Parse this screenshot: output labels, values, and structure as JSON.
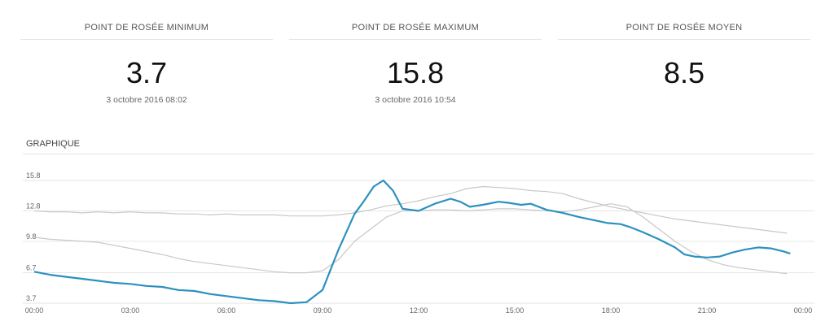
{
  "stats": [
    {
      "label": "POINT DE ROSÉE MINIMUM",
      "value": "3.7",
      "date": "3 octobre 2016 08:02"
    },
    {
      "label": "POINT DE ROSÉE MAXIMUM",
      "value": "15.8",
      "date": "3 octobre 2016 10:54"
    },
    {
      "label": "POINT DE ROSÉE MOYEN",
      "value": "8.5",
      "date": ""
    }
  ],
  "chart_title": "GRAPHIQUE",
  "chart_data": {
    "type": "line",
    "ylim": [
      3.7,
      15.8
    ],
    "yticks": [
      "3.7",
      "6.7",
      "9.8",
      "12.8",
      "15.8"
    ],
    "xticks": [
      "00:00",
      "03:00",
      "06:00",
      "09:00",
      "12:00",
      "15:00",
      "18:00",
      "21:00",
      "00:00"
    ],
    "grid": true,
    "colors": {
      "main": "#2b91c0",
      "reference": "#c8c8c8"
    },
    "series": [
      {
        "role": "main",
        "x": [
          0,
          0.5,
          1,
          1.5,
          2,
          2.5,
          3,
          3.5,
          4,
          4.5,
          5,
          5.5,
          6,
          6.5,
          7,
          7.5,
          8,
          8.5,
          9,
          9.5,
          10,
          10.3,
          10.6,
          10.9,
          11.2,
          11.5,
          12,
          12.5,
          13,
          13.3,
          13.6,
          14,
          14.5,
          14.8,
          15.2,
          15.5,
          16,
          16.5,
          17,
          17.3,
          17.6,
          17.9,
          18.3,
          18.6,
          19,
          19.5,
          20,
          20.3,
          20.6,
          21,
          21.4,
          21.8,
          22.2,
          22.6,
          23,
          23.4,
          23.6
        ],
        "y": [
          6.8,
          6.5,
          6.3,
          6.1,
          5.9,
          5.7,
          5.6,
          5.4,
          5.3,
          5.0,
          4.9,
          4.6,
          4.4,
          4.2,
          4.0,
          3.9,
          3.7,
          3.8,
          5.0,
          9.0,
          12.5,
          13.8,
          15.2,
          15.8,
          14.8,
          13.0,
          12.8,
          13.5,
          14.0,
          13.7,
          13.2,
          13.4,
          13.7,
          13.6,
          13.4,
          13.5,
          12.9,
          12.6,
          12.2,
          12.0,
          11.8,
          11.6,
          11.5,
          11.2,
          10.7,
          10.0,
          9.2,
          8.5,
          8.3,
          8.2,
          8.3,
          8.7,
          9.0,
          9.2,
          9.1,
          8.8,
          8.6
        ]
      },
      {
        "role": "reference",
        "x": [
          0,
          0.5,
          1,
          1.5,
          2,
          2.5,
          3,
          3.5,
          4,
          4.5,
          5,
          5.5,
          6,
          6.5,
          7,
          7.5,
          8,
          8.5,
          9,
          9.5,
          10,
          10.5,
          11,
          11.5,
          12,
          12.5,
          13,
          13.5,
          14,
          14.5,
          15,
          15.5,
          16,
          16.5,
          17,
          17.5,
          18,
          18.5,
          19,
          19.5,
          20,
          20.5,
          21,
          21.5,
          22,
          22.5,
          23,
          23.5
        ],
        "y": [
          12.8,
          12.7,
          12.7,
          12.6,
          12.7,
          12.6,
          12.7,
          12.6,
          12.6,
          12.5,
          12.5,
          12.4,
          12.5,
          12.4,
          12.4,
          12.4,
          12.3,
          12.3,
          12.3,
          12.4,
          12.6,
          12.9,
          13.3,
          13.5,
          13.8,
          14.2,
          14.5,
          15.0,
          15.2,
          15.1,
          15.0,
          14.8,
          14.7,
          14.5,
          14.0,
          13.6,
          13.2,
          12.9,
          12.6,
          12.3,
          12.0,
          11.8,
          11.6,
          11.4,
          11.2,
          11.0,
          10.8,
          10.6
        ]
      },
      {
        "role": "reference",
        "x": [
          0,
          0.5,
          1,
          1.5,
          2,
          2.5,
          3,
          3.5,
          4,
          4.5,
          5,
          5.5,
          6,
          6.5,
          7,
          7.5,
          8,
          8.5,
          9,
          9.5,
          10,
          10.5,
          11,
          11.5,
          12,
          12.5,
          13,
          13.5,
          14,
          14.5,
          15,
          15.5,
          16,
          16.5,
          17,
          17.5,
          18,
          18.5,
          19,
          19.5,
          20,
          20.5,
          21,
          21.5,
          22,
          22.5,
          23,
          23.5
        ],
        "y": [
          10.2,
          10.0,
          9.9,
          9.8,
          9.7,
          9.4,
          9.1,
          8.8,
          8.5,
          8.1,
          7.8,
          7.6,
          7.4,
          7.2,
          7.0,
          6.8,
          6.7,
          6.7,
          6.9,
          8.0,
          9.8,
          11.0,
          12.2,
          12.8,
          12.8,
          12.9,
          12.9,
          12.8,
          12.9,
          13.0,
          13.0,
          12.9,
          12.8,
          12.7,
          12.9,
          13.2,
          13.5,
          13.2,
          12.2,
          11.0,
          9.8,
          8.8,
          8.0,
          7.5,
          7.2,
          7.0,
          6.8,
          6.6
        ]
      }
    ]
  }
}
